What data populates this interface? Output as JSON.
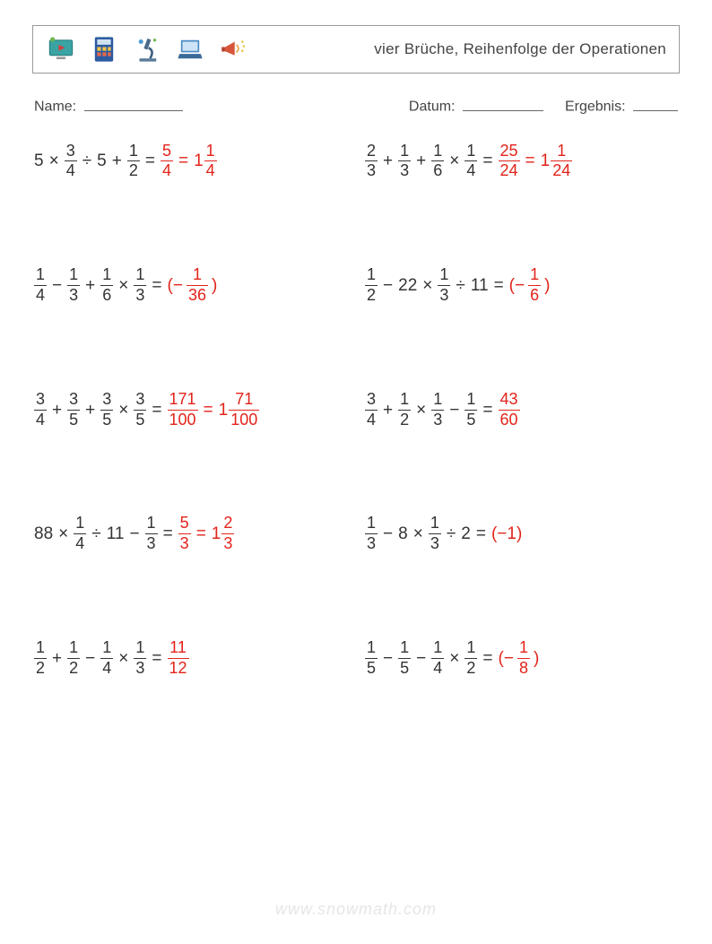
{
  "header": {
    "title": "vier Brüche, Reihenfolge der Operationen"
  },
  "meta": {
    "name_label": "Name:",
    "date_label": "Datum:",
    "result_label": "Ergebnis:"
  },
  "colors": {
    "answer": "#e2231a",
    "text": "#333333",
    "border": "#999999",
    "watermark": "#e6e6e6"
  },
  "problems": [
    {
      "lhs": [
        {
          "t": "int",
          "v": "5"
        },
        {
          "t": "op",
          "v": "×"
        },
        {
          "t": "frac",
          "n": "3",
          "d": "4"
        },
        {
          "t": "op",
          "v": "÷"
        },
        {
          "t": "int",
          "v": "5"
        },
        {
          "t": "op",
          "v": "+"
        },
        {
          "t": "frac",
          "n": "1",
          "d": "2"
        }
      ],
      "ans": [
        {
          "t": "frac",
          "n": "5",
          "d": "4"
        },
        {
          "t": "op",
          "v": "="
        },
        {
          "t": "mixed",
          "w": "1",
          "n": "1",
          "d": "4"
        }
      ]
    },
    {
      "lhs": [
        {
          "t": "frac",
          "n": "2",
          "d": "3"
        },
        {
          "t": "op",
          "v": "+"
        },
        {
          "t": "frac",
          "n": "1",
          "d": "3"
        },
        {
          "t": "op",
          "v": "+"
        },
        {
          "t": "frac",
          "n": "1",
          "d": "6"
        },
        {
          "t": "op",
          "v": "×"
        },
        {
          "t": "frac",
          "n": "1",
          "d": "4"
        }
      ],
      "ans": [
        {
          "t": "frac",
          "n": "25",
          "d": "24"
        },
        {
          "t": "op",
          "v": "="
        },
        {
          "t": "mixed",
          "w": "1",
          "n": "1",
          "d": "24"
        }
      ]
    },
    {
      "lhs": [
        {
          "t": "frac",
          "n": "1",
          "d": "4"
        },
        {
          "t": "op",
          "v": "−"
        },
        {
          "t": "frac",
          "n": "1",
          "d": "3"
        },
        {
          "t": "op",
          "v": "+"
        },
        {
          "t": "frac",
          "n": "1",
          "d": "6"
        },
        {
          "t": "op",
          "v": "×"
        },
        {
          "t": "frac",
          "n": "1",
          "d": "3"
        }
      ],
      "ans": [
        {
          "t": "txt",
          "v": "(−"
        },
        {
          "t": "frac",
          "n": "1",
          "d": "36"
        },
        {
          "t": "txt",
          "v": ")"
        }
      ]
    },
    {
      "lhs": [
        {
          "t": "frac",
          "n": "1",
          "d": "2"
        },
        {
          "t": "op",
          "v": "−"
        },
        {
          "t": "int",
          "v": "22"
        },
        {
          "t": "op",
          "v": "×"
        },
        {
          "t": "frac",
          "n": "1",
          "d": "3"
        },
        {
          "t": "op",
          "v": "÷"
        },
        {
          "t": "int",
          "v": "11"
        }
      ],
      "ans": [
        {
          "t": "txt",
          "v": "(−"
        },
        {
          "t": "frac",
          "n": "1",
          "d": "6"
        },
        {
          "t": "txt",
          "v": ")"
        }
      ]
    },
    {
      "lhs": [
        {
          "t": "frac",
          "n": "3",
          "d": "4"
        },
        {
          "t": "op",
          "v": "+"
        },
        {
          "t": "frac",
          "n": "3",
          "d": "5"
        },
        {
          "t": "op",
          "v": "+"
        },
        {
          "t": "frac",
          "n": "3",
          "d": "5"
        },
        {
          "t": "op",
          "v": "×"
        },
        {
          "t": "frac",
          "n": "3",
          "d": "5"
        }
      ],
      "ans": [
        {
          "t": "frac",
          "n": "171",
          "d": "100"
        },
        {
          "t": "op",
          "v": "="
        },
        {
          "t": "mixed",
          "w": "1",
          "n": "71",
          "d": "100"
        }
      ]
    },
    {
      "lhs": [
        {
          "t": "frac",
          "n": "3",
          "d": "4"
        },
        {
          "t": "op",
          "v": "+"
        },
        {
          "t": "frac",
          "n": "1",
          "d": "2"
        },
        {
          "t": "op",
          "v": "×"
        },
        {
          "t": "frac",
          "n": "1",
          "d": "3"
        },
        {
          "t": "op",
          "v": "−"
        },
        {
          "t": "frac",
          "n": "1",
          "d": "5"
        }
      ],
      "ans": [
        {
          "t": "frac",
          "n": "43",
          "d": "60"
        }
      ]
    },
    {
      "lhs": [
        {
          "t": "int",
          "v": "88"
        },
        {
          "t": "op",
          "v": "×"
        },
        {
          "t": "frac",
          "n": "1",
          "d": "4"
        },
        {
          "t": "op",
          "v": "÷"
        },
        {
          "t": "int",
          "v": "11"
        },
        {
          "t": "op",
          "v": "−"
        },
        {
          "t": "frac",
          "n": "1",
          "d": "3"
        }
      ],
      "ans": [
        {
          "t": "frac",
          "n": "5",
          "d": "3"
        },
        {
          "t": "op",
          "v": "="
        },
        {
          "t": "mixed",
          "w": "1",
          "n": "2",
          "d": "3"
        }
      ]
    },
    {
      "lhs": [
        {
          "t": "frac",
          "n": "1",
          "d": "3"
        },
        {
          "t": "op",
          "v": "−"
        },
        {
          "t": "int",
          "v": "8"
        },
        {
          "t": "op",
          "v": "×"
        },
        {
          "t": "frac",
          "n": "1",
          "d": "3"
        },
        {
          "t": "op",
          "v": "÷"
        },
        {
          "t": "int",
          "v": "2"
        }
      ],
      "ans": [
        {
          "t": "txt",
          "v": "(−1)"
        }
      ]
    },
    {
      "lhs": [
        {
          "t": "frac",
          "n": "1",
          "d": "2"
        },
        {
          "t": "op",
          "v": "+"
        },
        {
          "t": "frac",
          "n": "1",
          "d": "2"
        },
        {
          "t": "op",
          "v": "−"
        },
        {
          "t": "frac",
          "n": "1",
          "d": "4"
        },
        {
          "t": "op",
          "v": "×"
        },
        {
          "t": "frac",
          "n": "1",
          "d": "3"
        }
      ],
      "ans": [
        {
          "t": "frac",
          "n": "11",
          "d": "12"
        }
      ]
    },
    {
      "lhs": [
        {
          "t": "frac",
          "n": "1",
          "d": "5"
        },
        {
          "t": "op",
          "v": "−"
        },
        {
          "t": "frac",
          "n": "1",
          "d": "5"
        },
        {
          "t": "op",
          "v": "−"
        },
        {
          "t": "frac",
          "n": "1",
          "d": "4"
        },
        {
          "t": "op",
          "v": "×"
        },
        {
          "t": "frac",
          "n": "1",
          "d": "2"
        }
      ],
      "ans": [
        {
          "t": "txt",
          "v": "(−"
        },
        {
          "t": "frac",
          "n": "1",
          "d": "8"
        },
        {
          "t": "txt",
          "v": ")"
        }
      ]
    }
  ],
  "watermark": "www.snowmath.com"
}
